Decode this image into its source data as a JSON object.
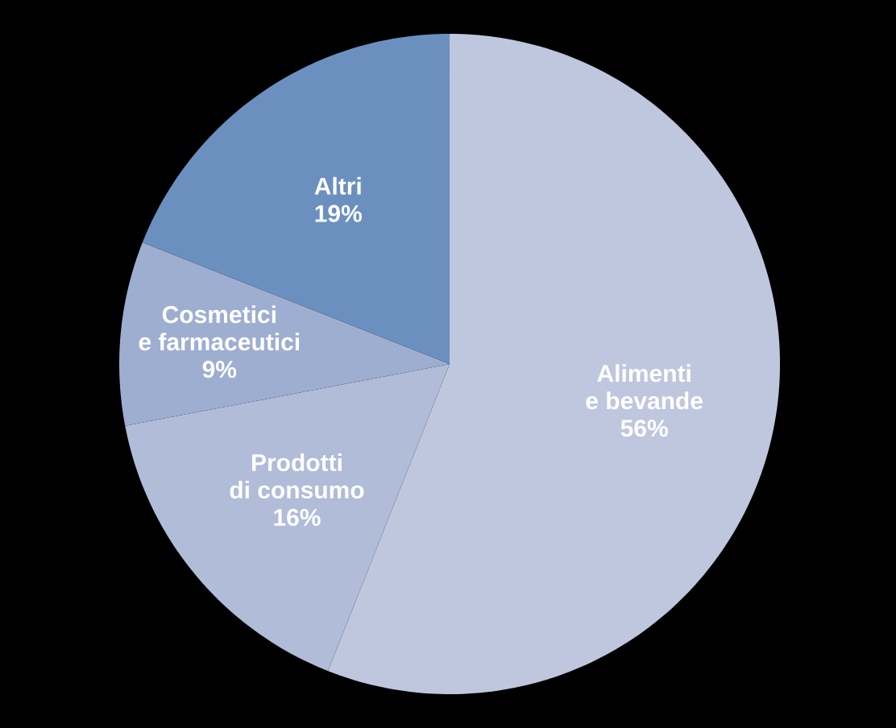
{
  "chart_data": {
    "type": "pie",
    "categories": [
      "Alimenti e bevande",
      "Prodotti di consumo",
      "Cosmetici e farmaceutici",
      "Altri"
    ],
    "values": [
      56,
      16,
      9,
      19
    ],
    "value_labels": [
      "56%",
      "16%",
      "9%",
      "19%"
    ],
    "colors": [
      "#bec7dd",
      "#b0bcd8",
      "#9eaed1",
      "#6b90c0"
    ]
  }
}
